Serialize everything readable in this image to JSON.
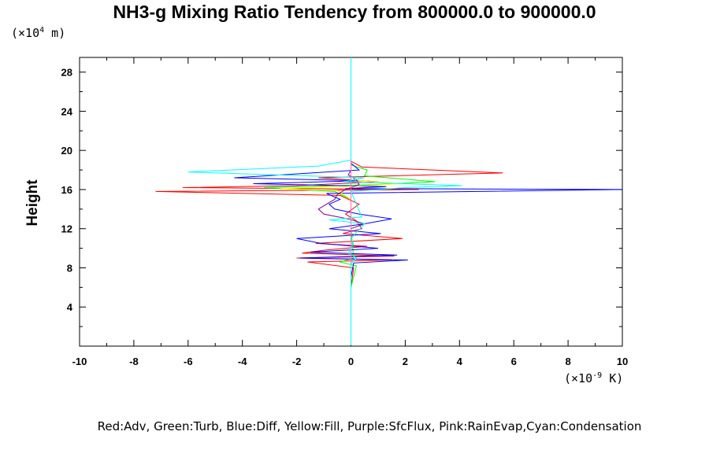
{
  "chart_data": {
    "type": "line",
    "title": "NH3-g Mixing Ratio Tendency from 800000.0 to 900000.0",
    "ylabel": "Height",
    "y_unit_label": {
      "pre": "(×10",
      "exp": "4",
      "post": " m)"
    },
    "x_unit_label": {
      "pre": "(×10",
      "exp": "-9",
      "post": " K)"
    },
    "xlim": [
      -10,
      10
    ],
    "ylim": [
      0,
      29.5
    ],
    "x_ticks": [
      -10,
      -8,
      -6,
      -4,
      -2,
      0,
      2,
      4,
      6,
      8,
      10
    ],
    "y_ticks": [
      4,
      8,
      12,
      16,
      20,
      24,
      28
    ],
    "legend_text": "Red:Adv, Green:Turb, Blue:Diff, Yellow:Fill, Purple:SfcFlux, Pink:RainEvap,Cyan:Condensation",
    "grid": false,
    "series": [
      {
        "name": "Adv",
        "color": "#ff0000",
        "y": [
          0.1,
          6.0,
          8.0,
          8.6,
          8.8,
          9.0,
          9.2,
          9.5,
          9.8,
          10.2,
          10.5,
          11.0,
          11.5,
          12.0,
          12.8,
          13.5,
          14.5,
          15.4,
          15.8,
          16.0,
          16.2,
          16.4,
          16.6,
          16.8,
          17.2,
          17.7,
          18.3,
          18.9,
          29.5
        ],
        "x": [
          0.0,
          0.0,
          0.1,
          -1.6,
          1.5,
          -2.0,
          1.6,
          -1.8,
          -1.0,
          0.6,
          -1.3,
          1.9,
          -0.3,
          0.4,
          0.2,
          -0.2,
          0.3,
          -0.4,
          -7.2,
          2.5,
          -6.2,
          -2.0,
          -0.5,
          1.0,
          -1.2,
          5.6,
          0.4,
          0.0,
          0.0
        ]
      },
      {
        "name": "Turb",
        "color": "#00ff00",
        "y": [
          0.1,
          6.0,
          8.2,
          8.6,
          9.0,
          12.0,
          15.0,
          15.8,
          16.2,
          16.5,
          16.8,
          17.4,
          18.0,
          18.5,
          29.5
        ],
        "x": [
          0.0,
          0.0,
          0.2,
          -0.4,
          0.1,
          0.0,
          0.0,
          -0.6,
          -3.2,
          0.8,
          3.1,
          0.5,
          0.6,
          0.0,
          0.0
        ]
      },
      {
        "name": "Diff",
        "color": "#0000ff",
        "y": [
          0.1,
          7.0,
          8.5,
          8.8,
          9.0,
          9.3,
          9.6,
          10.0,
          10.5,
          11.0,
          11.5,
          12.0,
          12.5,
          13.0,
          13.5,
          14.0,
          14.5,
          15.0,
          15.6,
          16.0,
          16.1,
          16.3,
          16.6,
          16.9,
          17.2,
          18.0,
          18.7,
          29.5
        ],
        "x": [
          0.0,
          0.0,
          0.1,
          2.1,
          -1.9,
          1.7,
          -1.5,
          1.0,
          -1.1,
          -2.0,
          1.1,
          -0.8,
          0.5,
          1.5,
          0.3,
          -0.6,
          -0.8,
          -0.4,
          -0.9,
          10.0,
          -0.2,
          1.3,
          -3.6,
          0.4,
          -4.3,
          0.3,
          0.0,
          0.0
        ]
      },
      {
        "name": "Fill",
        "color": "#ffff00",
        "y": [
          0.1,
          15.0,
          15.9,
          16.1,
          16.3,
          16.6,
          17.0,
          29.5
        ],
        "x": [
          0.0,
          0.0,
          -0.5,
          -2.6,
          -0.3,
          1.8,
          0.0,
          0.0
        ]
      },
      {
        "name": "SfcFlux",
        "color": "#800080",
        "y": [
          0.1,
          12.0,
          12.5,
          13.0,
          13.5,
          14.0,
          14.5,
          15.0,
          15.5,
          16.0,
          16.5,
          17.0,
          17.5,
          18.0,
          18.8,
          29.5
        ],
        "x": [
          0.0,
          0.0,
          0.5,
          -0.1,
          -1.0,
          -1.2,
          -0.9,
          -0.6,
          -0.5,
          -0.2,
          0.3,
          0.2,
          -0.1,
          0.0,
          0.0,
          0.0
        ]
      },
      {
        "name": "RainEvap",
        "color": "#ff69b4",
        "y": [
          0.1,
          29.5
        ],
        "x": [
          0.0,
          0.0
        ]
      },
      {
        "name": "Condensation",
        "color": "#00ffff",
        "y": [
          0.1,
          8.4,
          9.0,
          9.5,
          10.5,
          11.0,
          12.5,
          12.9,
          13.2,
          15.8,
          16.2,
          16.4,
          16.8,
          17.2,
          17.8,
          18.4,
          19.0,
          29.5
        ],
        "x": [
          0.0,
          0.0,
          0.2,
          -0.1,
          0.1,
          0.0,
          0.5,
          -0.8,
          0.4,
          0.0,
          2.0,
          4.1,
          -0.3,
          0.5,
          -6.0,
          -1.2,
          0.0,
          0.0
        ]
      }
    ]
  }
}
